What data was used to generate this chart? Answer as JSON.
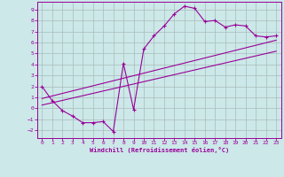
{
  "xlabel": "Windchill (Refroidissement éolien,°C)",
  "bg_color": "#cce8e8",
  "grid_color": "#aabbbb",
  "line_color": "#990099",
  "xlim": [
    -0.5,
    23.5
  ],
  "ylim": [
    -2.7,
    9.7
  ],
  "xticks": [
    0,
    1,
    2,
    3,
    4,
    5,
    6,
    7,
    8,
    9,
    10,
    11,
    12,
    13,
    14,
    15,
    16,
    17,
    18,
    19,
    20,
    21,
    22,
    23
  ],
  "yticks": [
    -2,
    -1,
    0,
    1,
    2,
    3,
    4,
    5,
    6,
    7,
    8,
    9
  ],
  "main_x": [
    0,
    1,
    2,
    3,
    4,
    5,
    6,
    7,
    8,
    9,
    10,
    11,
    12,
    13,
    14,
    15,
    16,
    17,
    18,
    19,
    20,
    21,
    22,
    23
  ],
  "main_y": [
    2.0,
    0.7,
    -0.2,
    -0.7,
    -1.3,
    -1.3,
    -1.2,
    -2.1,
    4.1,
    -0.1,
    5.4,
    6.6,
    7.5,
    8.6,
    9.3,
    9.1,
    7.9,
    8.0,
    7.4,
    7.6,
    7.5,
    6.6,
    6.5,
    6.6
  ],
  "line1_x": [
    0,
    23
  ],
  "line1_y": [
    0.3,
    5.2
  ],
  "line2_x": [
    0,
    23
  ],
  "line2_y": [
    0.9,
    6.2
  ]
}
